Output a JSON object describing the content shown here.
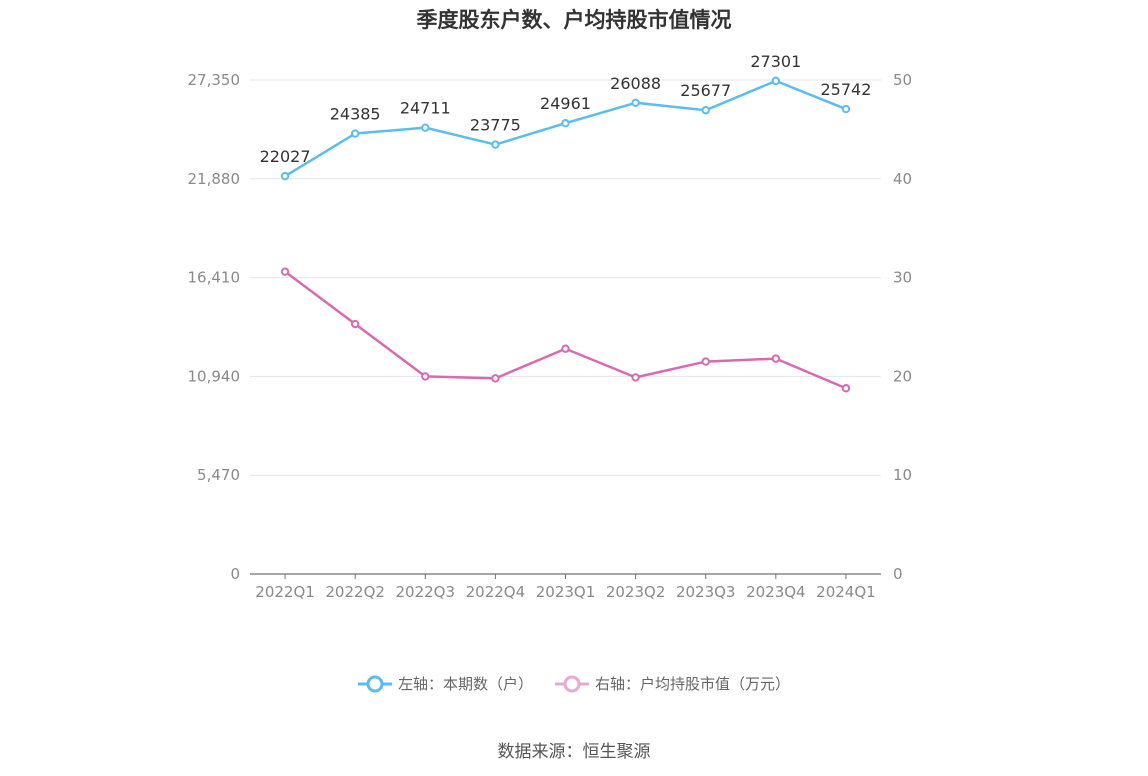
{
  "title": "季度股东户数、户均持股市值情况",
  "source": "数据来源：恒生聚源",
  "legend": [
    {
      "label": "左轴：本期数（户）",
      "color": "#5bbcf0"
    },
    {
      "label": "右轴：户均持股市值（万元）",
      "color": "#d96ab2"
    }
  ],
  "chart_data": {
    "type": "line",
    "title": "季度股东户数、户均持股市值情况",
    "categories": [
      "2022Q1",
      "2022Q2",
      "2022Q3",
      "2022Q4",
      "2023Q1",
      "2023Q2",
      "2023Q3",
      "2023Q4",
      "2024Q1"
    ],
    "left_axis": {
      "ticks": [
        "0",
        "5,470",
        "10,940",
        "16,410",
        "21,880",
        "27,350"
      ],
      "range": [
        0,
        27350
      ]
    },
    "right_axis": {
      "ticks": [
        "0",
        "10",
        "20",
        "30",
        "40",
        "50"
      ],
      "range": [
        0,
        50
      ]
    },
    "grid": true,
    "legend_position": "bottom",
    "series": [
      {
        "name": "左轴：本期数（户）",
        "axis": "left",
        "color": "#5bbcf0",
        "values": [
          22027,
          24385,
          24711,
          23775,
          24961,
          26088,
          25677,
          27301,
          25742
        ],
        "labels_shown": true
      },
      {
        "name": "右轴：户均持股市值（万元）",
        "axis": "right",
        "color": "#d96ab2",
        "values": [
          30.6,
          25.3,
          20.0,
          19.8,
          22.8,
          19.9,
          21.5,
          21.8,
          18.8
        ],
        "labels_shown": false
      }
    ]
  }
}
